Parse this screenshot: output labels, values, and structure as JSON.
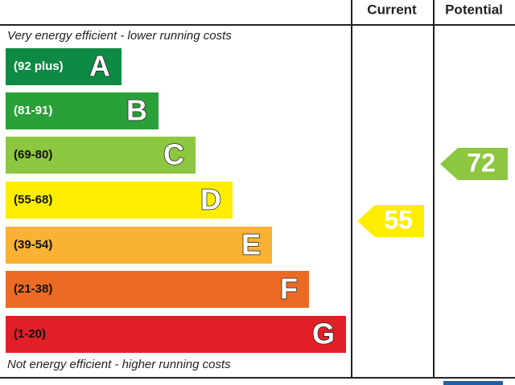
{
  "header": {
    "current": "Current",
    "potential": "Potential"
  },
  "top_note": "Very energy efficient - lower running costs",
  "bottom_note": "Not energy efficient - higher running costs",
  "bands": [
    {
      "range": "(92 plus)",
      "letter": "A"
    },
    {
      "range": "(81-91)",
      "letter": "B"
    },
    {
      "range": "(69-80)",
      "letter": "C"
    },
    {
      "range": "(55-68)",
      "letter": "D"
    },
    {
      "range": "(39-54)",
      "letter": "E"
    },
    {
      "range": "(21-38)",
      "letter": "F"
    },
    {
      "range": "(1-20)",
      "letter": "G"
    }
  ],
  "current": {
    "value": 55
  },
  "potential": {
    "value": 72
  }
}
